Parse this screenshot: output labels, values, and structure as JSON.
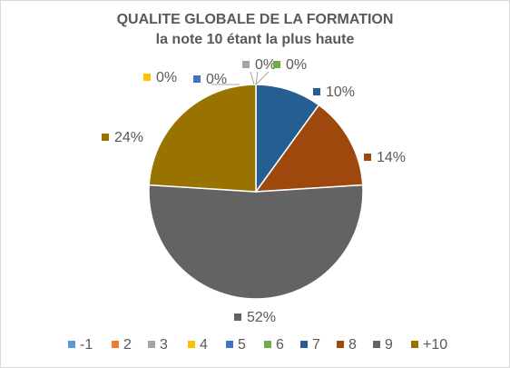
{
  "chart_data": {
    "type": "pie",
    "title": "QUALITE GLOBALE DE LA FORMATION",
    "subtitle": "la note 10 étant la plus haute",
    "categories": [
      "-1",
      "2",
      "3",
      "4",
      "5",
      "6",
      "7",
      "8",
      "9",
      "+10"
    ],
    "values": [
      0,
      0,
      0,
      0,
      0,
      0,
      10,
      14,
      52,
      24
    ],
    "data_labels": [
      "",
      "",
      "0%",
      "0%",
      "0%",
      "0%",
      "10%",
      "14%",
      "52%",
      "24%"
    ],
    "colors": [
      "#5b9bd5",
      "#ed7d31",
      "#a5a5a5",
      "#ffc000",
      "#4472c4",
      "#70ad47",
      "#255e91",
      "#9e480e",
      "#636363",
      "#997300"
    ],
    "legend_position": "bottom"
  }
}
